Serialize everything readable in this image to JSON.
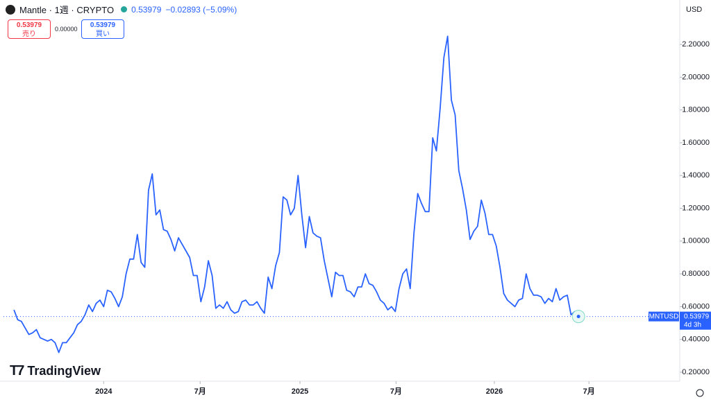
{
  "ui": {
    "symbol_title": "Mantle · 1週 · CRYPTO",
    "price": "0.53979",
    "change": "−0.02893 (−5.09%)",
    "sell_price": "0.53979",
    "sell_label": "売り",
    "spread": "0.00000",
    "buy_price": "0.53979",
    "buy_label": "買い",
    "currency": "USD",
    "logo": "TradingView"
  },
  "chart_data": {
    "type": "line",
    "series": [
      {
        "name": "MNTUSD",
        "color": "#2962ff",
        "values": [
          0.58,
          0.52,
          0.51,
          0.47,
          0.43,
          0.44,
          0.46,
          0.41,
          0.4,
          0.39,
          0.4,
          0.38,
          0.32,
          0.38,
          0.38,
          0.41,
          0.44,
          0.49,
          0.51,
          0.55,
          0.61,
          0.57,
          0.62,
          0.64,
          0.6,
          0.7,
          0.69,
          0.65,
          0.6,
          0.66,
          0.8,
          0.89,
          0.89,
          1.04,
          0.87,
          0.84,
          1.31,
          1.41,
          1.16,
          1.19,
          1.07,
          1.06,
          1.01,
          0.94,
          1.02,
          0.98,
          0.94,
          0.9,
          0.79,
          0.79,
          0.63,
          0.72,
          0.88,
          0.79,
          0.59,
          0.61,
          0.59,
          0.63,
          0.58,
          0.56,
          0.57,
          0.63,
          0.64,
          0.61,
          0.61,
          0.63,
          0.59,
          0.56,
          0.78,
          0.71,
          0.85,
          0.93,
          1.27,
          1.25,
          1.16,
          1.2,
          1.4,
          1.16,
          0.96,
          1.15,
          1.05,
          1.03,
          1.02,
          0.88,
          0.77,
          0.66,
          0.81,
          0.79,
          0.79,
          0.7,
          0.69,
          0.66,
          0.72,
          0.72,
          0.8,
          0.74,
          0.73,
          0.69,
          0.64,
          0.62,
          0.58,
          0.6,
          0.57,
          0.71,
          0.8,
          0.83,
          0.71,
          1.05,
          1.29,
          1.23,
          1.18,
          1.18,
          1.63,
          1.55,
          1.81,
          2.12,
          2.25,
          1.86,
          1.77,
          1.43,
          1.32,
          1.19,
          1.01,
          1.06,
          1.09,
          1.25,
          1.17,
          1.04,
          1.04,
          0.97,
          0.84,
          0.68,
          0.64,
          0.62,
          0.6,
          0.64,
          0.65,
          0.8,
          0.71,
          0.67,
          0.67,
          0.66,
          0.62,
          0.65,
          0.63,
          0.71,
          0.64,
          0.66,
          0.67,
          0.55,
          0.57,
          0.54
        ]
      }
    ],
    "last_price": 0.53979,
    "last_price_label": "0.53979",
    "countdown": "4d 3h",
    "xlim": [
      -2.8,
      177.9
    ],
    "xticks": [
      {
        "value": 24.0,
        "label": "2024"
      },
      {
        "value": 49.8,
        "label": "7月"
      },
      {
        "value": 76.5,
        "label": "2025"
      },
      {
        "value": 102.2,
        "label": "7月"
      },
      {
        "value": 128.5,
        "label": "2026"
      },
      {
        "value": 153.8,
        "label": "7月"
      }
    ],
    "ylim": [
      0.145,
      2.471
    ],
    "yticks": [
      {
        "value": 0.2,
        "label": "0.20000"
      },
      {
        "value": 0.4,
        "label": "0.40000"
      },
      {
        "value": 0.6,
        "label": "0.60000"
      },
      {
        "value": 0.8,
        "label": "0.80000"
      },
      {
        "value": 1.0,
        "label": "1.00000"
      },
      {
        "value": 1.2,
        "label": "1.20000"
      },
      {
        "value": 1.4,
        "label": "1.40000"
      },
      {
        "value": 1.6,
        "label": "1.60000"
      },
      {
        "value": 1.8,
        "label": "1.80000"
      },
      {
        "value": 2.0,
        "label": "2.00000"
      },
      {
        "value": 2.2,
        "label": "2.20000"
      }
    ],
    "grid": false
  }
}
